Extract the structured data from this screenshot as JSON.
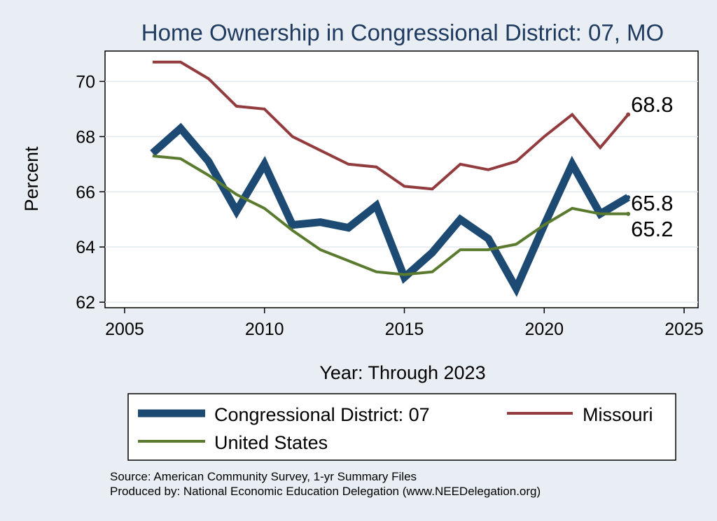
{
  "chart_data": {
    "type": "line",
    "title": "Home Ownership in Congressional District:  07, MO",
    "xlabel": "Year: Through 2023",
    "ylabel": "Percent",
    "xlim": [
      2004.3,
      2025.5
    ],
    "ylim": [
      61.8,
      71.1
    ],
    "xticks": [
      2005,
      2010,
      2015,
      2020,
      2025
    ],
    "yticks": [
      62,
      64,
      66,
      68,
      70
    ],
    "x": [
      2006,
      2007,
      2008,
      2009,
      2010,
      2011,
      2012,
      2013,
      2014,
      2015,
      2016,
      2017,
      2018,
      2019,
      2020,
      2021,
      2022,
      2023
    ],
    "series": [
      {
        "name": "Missouri",
        "color": "#933c3f",
        "width": 4,
        "values": [
          70.7,
          70.7,
          70.1,
          69.1,
          69.0,
          68.0,
          67.5,
          67.0,
          66.9,
          66.2,
          66.1,
          67.0,
          66.8,
          67.1,
          68.0,
          68.8,
          67.6,
          68.8
        ],
        "end_label": "68.8"
      },
      {
        "name": "Congressional District:  07",
        "color": "#1c4a73",
        "width": 11,
        "values": [
          67.4,
          68.3,
          67.1,
          65.3,
          67.0,
          64.8,
          64.9,
          64.7,
          65.5,
          62.9,
          63.8,
          65.0,
          64.3,
          62.5,
          64.8,
          67.0,
          65.2,
          65.8
        ],
        "end_label": "65.8"
      },
      {
        "name": "United States",
        "color": "#5a7b2f",
        "width": 4,
        "values": [
          67.3,
          67.2,
          66.6,
          65.9,
          65.4,
          64.6,
          63.9,
          63.5,
          63.1,
          63.0,
          63.1,
          63.9,
          63.9,
          64.1,
          64.8,
          65.4,
          65.2,
          65.2
        ],
        "end_label": "65.2"
      }
    ],
    "legend": [
      {
        "label": "Congressional District:  07",
        "series": 1
      },
      {
        "label": "Missouri",
        "series": 0
      },
      {
        "label": "United States",
        "series": 2
      }
    ],
    "legend_position": "bottom",
    "grid": true
  },
  "source": {
    "line1": "Source: American Community Survey, 1-yr Summary Files",
    "line2": "Produced by: National Economic Education Delegation (www.NEEDelegation.org)"
  }
}
